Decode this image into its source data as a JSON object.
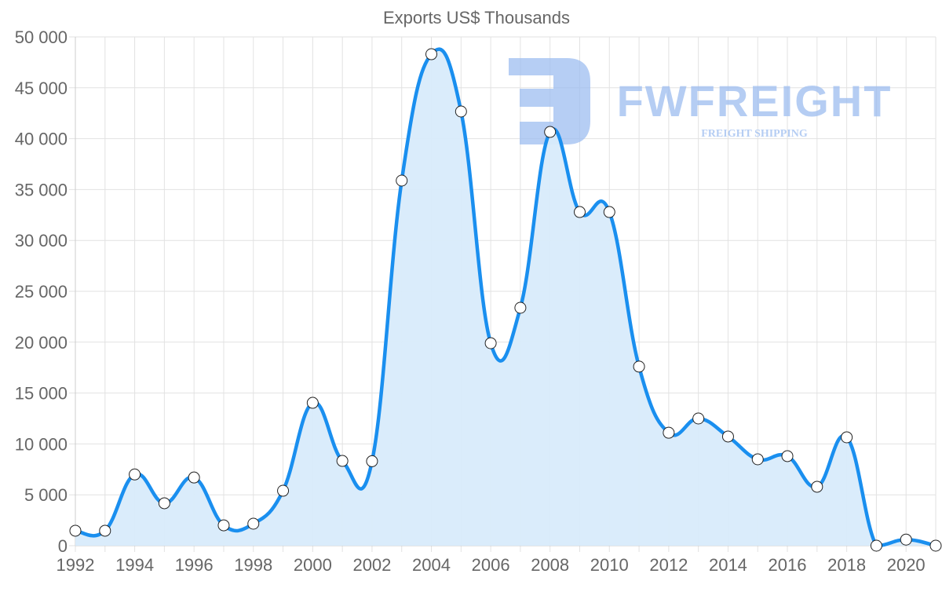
{
  "chart_data": {
    "type": "area",
    "title": "Exports US$ Thousands",
    "xlabel": "",
    "ylabel": "",
    "x": [
      1992,
      1993,
      1994,
      1995,
      1996,
      1997,
      1998,
      1999,
      2000,
      2001,
      2002,
      2003,
      2004,
      2005,
      2006,
      2007,
      2008,
      2009,
      2010,
      2011,
      2012,
      2013,
      2014,
      2015,
      2016,
      2017,
      2018,
      2019,
      2020,
      2021
    ],
    "series": [
      {
        "name": "Exports US$ Thousands",
        "values": [
          1470,
          1470,
          7000,
          4170,
          6700,
          2000,
          2160,
          5400,
          14040,
          8330,
          8300,
          35880,
          48300,
          42670,
          19900,
          23380,
          40660,
          32790,
          32790,
          17600,
          11100,
          12500,
          10730,
          8490,
          8800,
          5790,
          10650,
          0,
          600,
          0
        ]
      }
    ],
    "ylim": [
      0,
      50000
    ],
    "yticks": [
      0,
      5000,
      10000,
      15000,
      20000,
      25000,
      30000,
      35000,
      40000,
      45000,
      50000
    ],
    "ytick_labels": [
      "0",
      "5 000",
      "10 000",
      "15 000",
      "20 000",
      "25 000",
      "30 000",
      "35 000",
      "40 000",
      "45 000",
      "50 000"
    ],
    "xtick_labels": [
      "1992",
      "1994",
      "1996",
      "1998",
      "2000",
      "2002",
      "2004",
      "2006",
      "2008",
      "2010",
      "2012",
      "2014",
      "2016",
      "2018",
      "2020"
    ],
    "grid": true,
    "legend": "none",
    "colors": {
      "line": "#1a8fef",
      "fill": "#d8ebfb",
      "grid": "#e2e2e2",
      "text": "#666666",
      "point_fill": "#ffffff",
      "point_stroke": "#222222"
    }
  },
  "watermark": {
    "brand": "FWFREIGHT",
    "tagline": "FREIGHT SHIPPING",
    "color": "#9dbdf0"
  }
}
